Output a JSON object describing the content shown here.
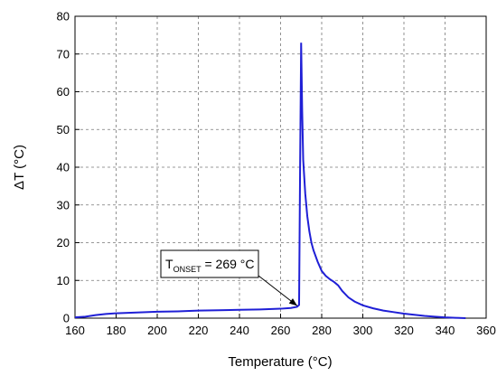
{
  "chart_data": {
    "type": "line",
    "title": "",
    "xlabel": "Temperature",
    "xlabel_unit": "(°C)",
    "ylabel": "ΔT",
    "ylabel_unit": "(°C)",
    "xlim": [
      160,
      360
    ],
    "ylim": [
      0,
      80
    ],
    "xticks": [
      160,
      180,
      200,
      220,
      240,
      260,
      280,
      300,
      320,
      340,
      360
    ],
    "yticks": [
      0,
      10,
      20,
      30,
      40,
      50,
      60,
      70,
      80
    ],
    "grid": true,
    "line_color": "#1f1fd6",
    "series": [
      {
        "x": [
          160,
          165,
          170,
          175,
          180,
          190,
          200,
          210,
          220,
          230,
          240,
          250,
          260,
          265,
          268,
          269,
          269.5,
          270,
          270.5,
          271,
          272,
          273,
          274,
          275,
          276,
          278,
          280,
          282,
          284,
          286,
          288,
          290,
          293,
          296,
          300,
          305,
          310,
          315,
          320,
          325,
          330,
          335,
          340,
          345,
          350
        ],
        "y": [
          0.2,
          0.4,
          0.8,
          1.1,
          1.3,
          1.5,
          1.7,
          1.8,
          2.0,
          2.1,
          2.2,
          2.3,
          2.5,
          2.7,
          3.0,
          3.5,
          40,
          73,
          55,
          42,
          33,
          27,
          23,
          20,
          18,
          15,
          12.5,
          11.2,
          10.3,
          9.6,
          8.7,
          7.2,
          5.5,
          4.4,
          3.4,
          2.6,
          2.0,
          1.6,
          1.2,
          0.9,
          0.6,
          0.4,
          0.2,
          0.1,
          0.0
        ]
      }
    ],
    "annotation": {
      "label_main": "T",
      "label_sub": "ONSET",
      "label_rest": " = 269 °C",
      "arrow_to": [
        269,
        3.5
      ]
    }
  }
}
